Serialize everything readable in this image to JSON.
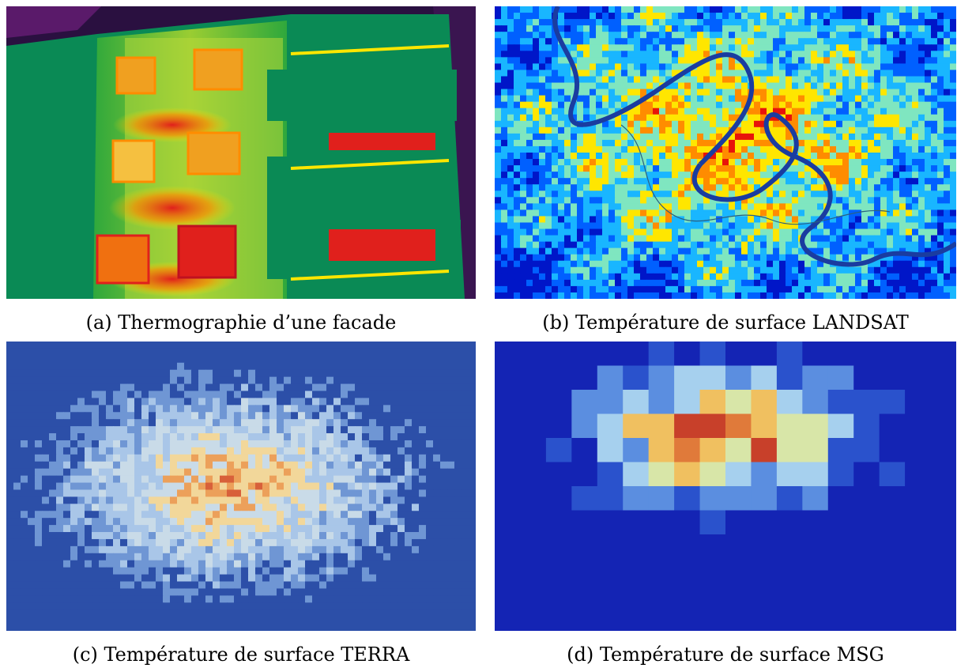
{
  "figure": {
    "panels": [
      {
        "id": "a",
        "caption": "(a) Thermographie d’une facade",
        "palette": [
          "#0a8a55",
          "#2fa83c",
          "#9acd32",
          "#ffe600",
          "#ff8c00",
          "#e0201c",
          "#8b1a8b",
          "#2a1040"
        ]
      },
      {
        "id": "b",
        "caption": "(b) Température de surface LANDSAT",
        "palette": [
          "#0016c8",
          "#0060ff",
          "#19b6ff",
          "#7fe6c0",
          "#ffe600",
          "#ff8c00",
          "#e8140a"
        ]
      },
      {
        "id": "c",
        "caption": "(c) Température de surface TERRA",
        "palette": [
          "#2c4fa8",
          "#6f96d4",
          "#a9c6e8",
          "#c9dbe8",
          "#f2d79a",
          "#eca05a",
          "#d8603a"
        ]
      },
      {
        "id": "d",
        "caption": "(d) Température de surface MSG",
        "palette": [
          "#1424b4",
          "#2a52cc",
          "#5b8ee0",
          "#a6d0ee",
          "#d8e6a8",
          "#f0c060",
          "#e07a3a",
          "#c8402a"
        ]
      }
    ]
  }
}
